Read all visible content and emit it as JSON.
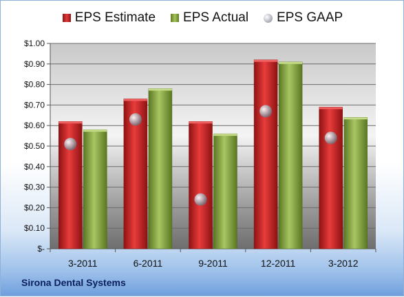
{
  "company": "Sirona Dental Systems",
  "legend": {
    "estimate": "EPS Estimate",
    "actual": "EPS Actual",
    "gaap": "EPS GAAP"
  },
  "colors": {
    "estimate": "#cc2222",
    "actual": "#8fae47",
    "gaap": "#b9bdc4"
  },
  "chart_data": {
    "type": "bar",
    "categories": [
      "3-2011",
      "6-2011",
      "9-2011",
      "12-2011",
      "3-2012"
    ],
    "series": [
      {
        "name": "EPS Estimate",
        "values": [
          0.62,
          0.73,
          0.62,
          0.92,
          0.69
        ]
      },
      {
        "name": "EPS Actual",
        "values": [
          0.58,
          0.78,
          0.56,
          0.91,
          0.64
        ]
      },
      {
        "name": "EPS GAAP",
        "values": [
          0.51,
          0.63,
          0.24,
          0.67,
          0.54
        ]
      }
    ],
    "ylim": [
      0,
      1.0
    ],
    "yticks": [
      "$-",
      "$0.10",
      "$0.20",
      "$0.30",
      "$0.40",
      "$0.50",
      "$0.60",
      "$0.70",
      "$0.80",
      "$0.90",
      "$1.00"
    ],
    "grid": true,
    "legend_position": "top"
  }
}
